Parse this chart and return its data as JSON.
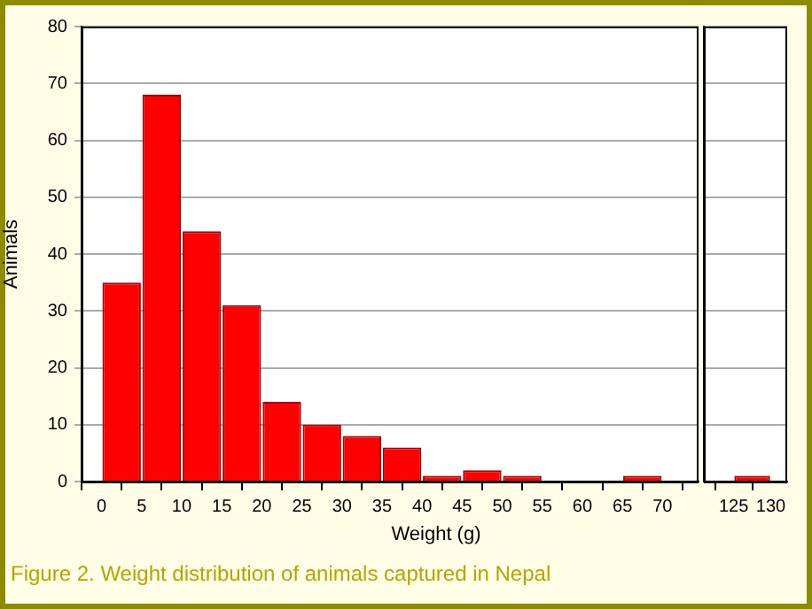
{
  "chart_data": [
    {
      "type": "histogram",
      "xlabel": "Weight (g)",
      "ylabel": "Animals",
      "bins": [
        0,
        5,
        10,
        15,
        20,
        25,
        30,
        35,
        40,
        45,
        50,
        55,
        60,
        65,
        70
      ],
      "values": [
        35,
        68,
        44,
        31,
        14,
        10,
        8,
        6,
        1,
        2,
        1,
        0,
        0,
        1
      ],
      "color": "#ff0000",
      "xlim": [
        -2.5,
        74.5
      ],
      "xticks": [
        0,
        5,
        10,
        15,
        20,
        25,
        30,
        35,
        40,
        45,
        50,
        55,
        60,
        65,
        70
      ],
      "ylim": [
        0,
        80
      ],
      "yticks": [
        0,
        10,
        20,
        30,
        40,
        50,
        60,
        70,
        80
      ],
      "grid": "y",
      "annotations": [
        "Figure 2.  Weight distribution of animals captured in Nepal"
      ]
    },
    {
      "type": "histogram",
      "bins": [
        125,
        130
      ],
      "values": [
        1
      ],
      "color": "#ff0000",
      "xlim": [
        121,
        132.2
      ],
      "xticks": [
        125,
        130
      ],
      "ylim": [
        0,
        80
      ],
      "yticks": [
        0,
        10,
        20,
        30,
        40,
        50,
        60,
        70,
        80
      ],
      "grid": "y",
      "tick_labels": "x"
    }
  ]
}
